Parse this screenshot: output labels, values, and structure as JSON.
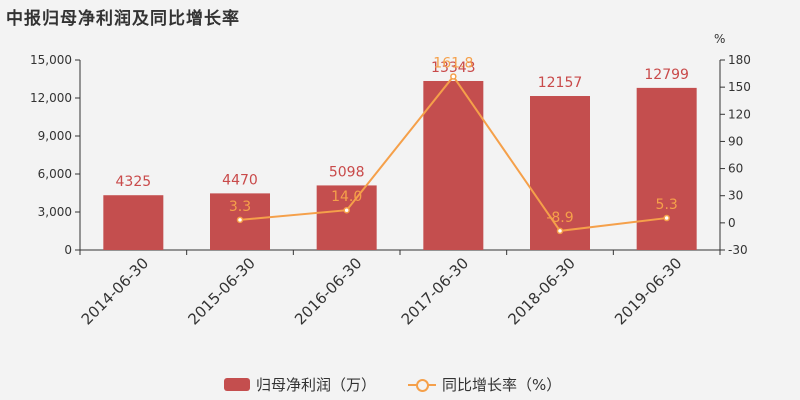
{
  "chart_data": {
    "type": "bar",
    "title": "中报归母净利润及同比增长率",
    "categories": [
      "2014-06-30",
      "2015-06-30",
      "2016-06-30",
      "2017-06-30",
      "2018-06-30",
      "2019-06-30"
    ],
    "series": [
      {
        "name": "归母净利润（万）",
        "type": "bar",
        "axis": "left",
        "values": [
          4325,
          4470,
          5098,
          13343,
          12157,
          12799
        ],
        "labels": [
          "4325",
          "4470",
          "5098",
          "13343",
          "12157",
          "12799"
        ],
        "color": "#c44e4e"
      },
      {
        "name": "同比增长率（%）",
        "type": "line",
        "axis": "right",
        "values": [
          null,
          3.3,
          14.0,
          161.8,
          -8.9,
          5.3
        ],
        "labels": [
          "",
          "3.3",
          "14.0",
          "161.8",
          "-8.9",
          "5.3"
        ],
        "color": "#f5a04a"
      }
    ],
    "y_left": {
      "ylim": [
        0,
        15000
      ],
      "ticks": [
        0,
        3000,
        6000,
        9000,
        12000,
        15000
      ],
      "tick_labels": [
        "0",
        "3,000",
        "6,000",
        "9,000",
        "12,000",
        "15,000"
      ]
    },
    "y_right": {
      "unit": "%",
      "ylim": [
        -30,
        180
      ],
      "ticks": [
        -30,
        0,
        30,
        60,
        90,
        120,
        150,
        180
      ],
      "tick_labels": [
        "-30",
        "0",
        "30",
        "60",
        "90",
        "120",
        "150",
        "180"
      ]
    },
    "grid": false,
    "legend_position": "bottom-center"
  }
}
